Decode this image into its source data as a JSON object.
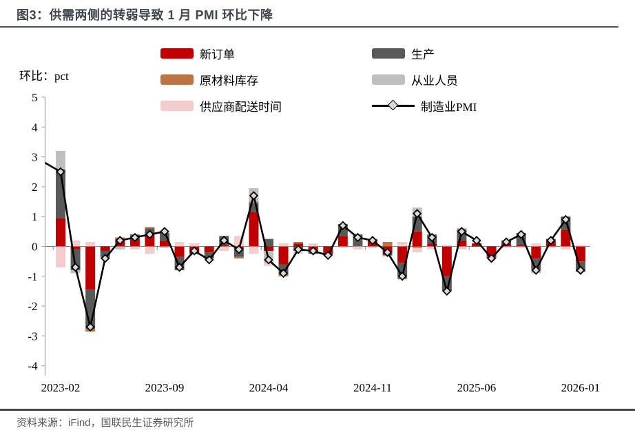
{
  "header": {
    "title": "图3：供需两侧的转弱导致 1 月 PMI 环比下降"
  },
  "legend": {
    "items": [
      {
        "label": "新订单",
        "color": "#c00000",
        "type": "bar"
      },
      {
        "label": "生产",
        "color": "#595959",
        "type": "bar"
      },
      {
        "label": "原材料库存",
        "color": "#be7342",
        "type": "bar"
      },
      {
        "label": "从业人员",
        "color": "#bfbfbf",
        "type": "bar"
      },
      {
        "label": "供应商配送时间",
        "color": "#f2cdcc",
        "type": "bar"
      },
      {
        "label": "制造业PMI",
        "color": "#000000",
        "type": "line"
      }
    ]
  },
  "chart_data": {
    "type": "bar",
    "stacked": true,
    "grid": false,
    "legend_position": "top",
    "ylabel": "环比：pct",
    "ylim": [
      -4,
      5
    ],
    "y_tick_step": 1,
    "x_tick_labels": [
      "2023-02",
      "2023-09",
      "2024-04",
      "2024-11",
      "2025-06",
      "2026-01"
    ],
    "x_tick_indices": [
      0,
      7,
      14,
      21,
      28,
      35
    ],
    "categories": [
      "2023-02",
      "2023-03",
      "2023-04",
      "2023-05",
      "2023-06",
      "2023-07",
      "2023-08",
      "2023-09",
      "2023-10",
      "2023-11",
      "2023-12",
      "2024-01",
      "2024-02",
      "2024-03",
      "2024-04",
      "2024-05",
      "2024-06",
      "2024-07",
      "2024-08",
      "2024-09",
      "2024-10",
      "2024-11",
      "2024-12",
      "2025-01",
      "2025-02",
      "2025-03",
      "2025-04",
      "2025-05",
      "2025-06",
      "2025-07",
      "2025-08",
      "2025-09",
      "2025-10",
      "2025-11",
      "2025-12",
      "2026-01"
    ],
    "series": [
      {
        "name": "新订单",
        "color": "#c00000",
        "values": [
          0.95,
          -0.1,
          -1.45,
          -0.15,
          0.25,
          0.25,
          0.4,
          0.2,
          -0.35,
          -0.25,
          -0.2,
          0.05,
          -0.1,
          1.15,
          -0.15,
          -0.6,
          0.1,
          -0.15,
          -0.25,
          0.35,
          0.0,
          0.2,
          -0.2,
          -0.55,
          0.5,
          0.1,
          -1.0,
          0.2,
          0.1,
          -0.35,
          0.1,
          0.05,
          -0.4,
          0.2,
          0.55,
          -0.5
        ]
      },
      {
        "name": "生产",
        "color": "#595959",
        "values": [
          1.6,
          -0.7,
          -1.3,
          -0.2,
          0.0,
          0.15,
          0.2,
          0.25,
          -0.45,
          0.0,
          -0.2,
          0.3,
          -0.25,
          0.3,
          0.25,
          -0.35,
          -0.15,
          -0.1,
          -0.05,
          0.4,
          0.4,
          0.05,
          -0.1,
          -0.45,
          0.5,
          0.3,
          -0.5,
          0.35,
          0.0,
          -0.05,
          0.1,
          0.4,
          -0.35,
          0.05,
          0.45,
          -0.35
        ]
      },
      {
        "name": "原材料库存",
        "color": "#be7342",
        "values": [
          0.05,
          0.0,
          -0.1,
          -0.05,
          0.05,
          0.0,
          0.05,
          0.0,
          0.0,
          0.0,
          0.0,
          0.0,
          -0.05,
          0.05,
          0.0,
          -0.05,
          0.05,
          0.0,
          0.0,
          0.0,
          0.0,
          0.0,
          0.15,
          -0.1,
          -0.05,
          0.0,
          0.0,
          0.05,
          0.0,
          0.0,
          0.0,
          0.0,
          -0.05,
          0.0,
          0.0,
          0.0
        ]
      },
      {
        "name": "从业人员",
        "color": "#bfbfbf",
        "values": [
          0.6,
          -0.1,
          0.0,
          0.0,
          -0.1,
          0.0,
          0.0,
          -0.05,
          0.0,
          0.0,
          -0.05,
          0.0,
          0.0,
          0.45,
          -0.4,
          0.0,
          0.0,
          0.0,
          0.0,
          0.0,
          0.0,
          0.0,
          0.0,
          0.0,
          0.3,
          0.0,
          0.0,
          0.0,
          0.0,
          0.0,
          0.0,
          0.0,
          -0.1,
          0.0,
          0.0,
          0.0
        ]
      },
      {
        "name": "供应商配送时间",
        "color": "#f2cdcc",
        "values": [
          -0.7,
          0.2,
          0.15,
          0.0,
          0.0,
          -0.1,
          -0.25,
          0.1,
          0.15,
          0.1,
          0.0,
          -0.15,
          0.35,
          -0.25,
          -0.1,
          0.1,
          -0.1,
          0.1,
          0.0,
          -0.05,
          -0.1,
          -0.05,
          -0.05,
          0.15,
          -0.15,
          -0.1,
          0.05,
          -0.1,
          0.1,
          0.0,
          -0.05,
          -0.05,
          0.1,
          -0.05,
          -0.1,
          0.05
        ]
      }
    ],
    "overlay_line": {
      "name": "制造业PMI",
      "color": "#000000",
      "marker": "diamond",
      "marker_fill": "#d9d9d9",
      "lead_in_value": 2.8,
      "values": [
        2.5,
        -0.7,
        -2.7,
        -0.4,
        0.2,
        0.3,
        0.4,
        0.5,
        -0.7,
        -0.15,
        -0.45,
        0.2,
        -0.1,
        1.7,
        -0.45,
        -0.9,
        -0.1,
        -0.15,
        -0.3,
        0.7,
        0.3,
        0.2,
        -0.2,
        -1.0,
        1.1,
        0.3,
        -1.5,
        0.5,
        0.2,
        -0.4,
        0.15,
        0.4,
        -0.8,
        0.2,
        0.9,
        -0.8
      ]
    }
  },
  "footer": {
    "source": "资料来源：iFind，国联民生证券研究所"
  }
}
